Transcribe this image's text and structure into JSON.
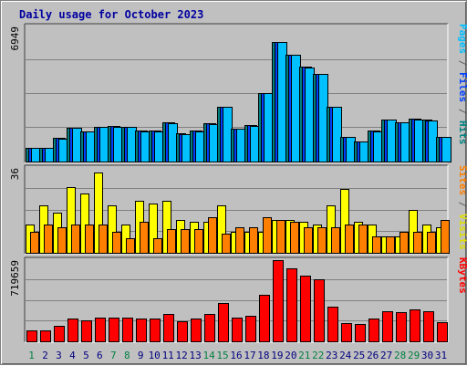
{
  "chart_data": {
    "type": "bar",
    "title": "Daily usage for October 2023",
    "categories": [
      "1",
      "2",
      "3",
      "4",
      "5",
      "6",
      "7",
      "8",
      "9",
      "10",
      "11",
      "12",
      "13",
      "14",
      "15",
      "16",
      "17",
      "18",
      "19",
      "20",
      "21",
      "22",
      "23",
      "24",
      "25",
      "26",
      "27",
      "28",
      "29",
      "30",
      "31"
    ],
    "weekend_days": [
      "1",
      "7",
      "8",
      "14",
      "15",
      "21",
      "22",
      "28",
      "29"
    ],
    "panels": [
      {
        "name": "pages-files-hits",
        "y_max_label": "6949",
        "ylim": [
          0,
          6949
        ],
        "side_labels": [
          {
            "text": "Pages",
            "color": "#00c0ff"
          },
          {
            "text": " / ",
            "color": "#606060"
          },
          {
            "text": "Files",
            "color": "#0040ff"
          },
          {
            "text": " / ",
            "color": "#606060"
          },
          {
            "text": "Hits",
            "color": "#008080"
          }
        ],
        "series": [
          {
            "name": "Hits",
            "color": "#008080",
            "values": [
              720,
              720,
              1210,
              1760,
              1560,
              1790,
              1820,
              1800,
              1590,
              1590,
              2010,
              1440,
              1590,
              1960,
              2830,
              1690,
              1870,
              3520,
              6160,
              5510,
              4870,
              4530,
              2820,
              1270,
              1050,
              1590,
              2160,
              2040,
              2200,
              2140,
              1270
            ]
          },
          {
            "name": "Files",
            "color": "#0040ff",
            "values": [
              710,
              710,
              1200,
              1750,
              1550,
              1780,
              1810,
              1790,
              1580,
              1580,
              2000,
              1430,
              1580,
              1950,
              2820,
              1680,
              1860,
              3510,
              6150,
              5500,
              4860,
              4520,
              2810,
              1260,
              1040,
              1580,
              2150,
              2030,
              2190,
              2130,
              1260
            ]
          },
          {
            "name": "Pages",
            "color": "#00c0ff",
            "values": [
              700,
              700,
              1190,
              1740,
              1540,
              1770,
              1800,
              1780,
              1570,
              1570,
              1990,
              1420,
              1570,
              1940,
              2810,
              1670,
              1850,
              3500,
              6140,
              5490,
              4850,
              4510,
              2800,
              1250,
              1030,
              1570,
              2140,
              2020,
              2180,
              2120,
              1250
            ]
          }
        ]
      },
      {
        "name": "visits-sites",
        "y_max_label": "36",
        "ylim": [
          0,
          36
        ],
        "side_labels": [
          {
            "text": "Sites",
            "color": "#ff8000"
          },
          {
            "text": " / ",
            "color": "#606060"
          },
          {
            "text": "Visits",
            "color": "#e0e000"
          }
        ],
        "series": [
          {
            "name": "Visits",
            "color": "#ffff00",
            "values": [
              12,
              20,
              17,
              28,
              25,
              34,
              20,
              12,
              22,
              21,
              22,
              14,
              13,
              13,
              20,
              9,
              9,
              9,
              14,
              14,
              13,
              12,
              20,
              27,
              13,
              12,
              7,
              7,
              18,
              12,
              11
            ]
          },
          {
            "name": "Sites",
            "color": "#ff8000",
            "values": [
              9,
              12,
              11,
              12,
              12,
              12,
              9,
              6,
              13,
              6,
              10,
              10,
              10,
              15,
              8,
              11,
              11,
              15,
              14,
              13,
              11,
              11,
              11,
              12,
              12,
              7,
              7,
              9,
              9,
              9,
              14
            ]
          }
        ]
      },
      {
        "name": "kbytes",
        "y_max_label": "719659",
        "ylim": [
          0,
          719659
        ],
        "side_labels": [
          {
            "text": "KBytes",
            "color": "#ff0000"
          }
        ],
        "series": [
          {
            "name": "KBytes",
            "color": "#ff0000",
            "values": [
              100000,
              100000,
              140000,
              200000,
              190000,
              210000,
              210000,
              210000,
              200000,
              200000,
              240000,
              180000,
              200000,
              240000,
              340000,
              210000,
              230000,
              410000,
              719659,
              650000,
              580000,
              550000,
              310000,
              160000,
              150000,
              200000,
              270000,
              260000,
              280000,
              270000,
              170000
            ]
          }
        ]
      }
    ]
  }
}
